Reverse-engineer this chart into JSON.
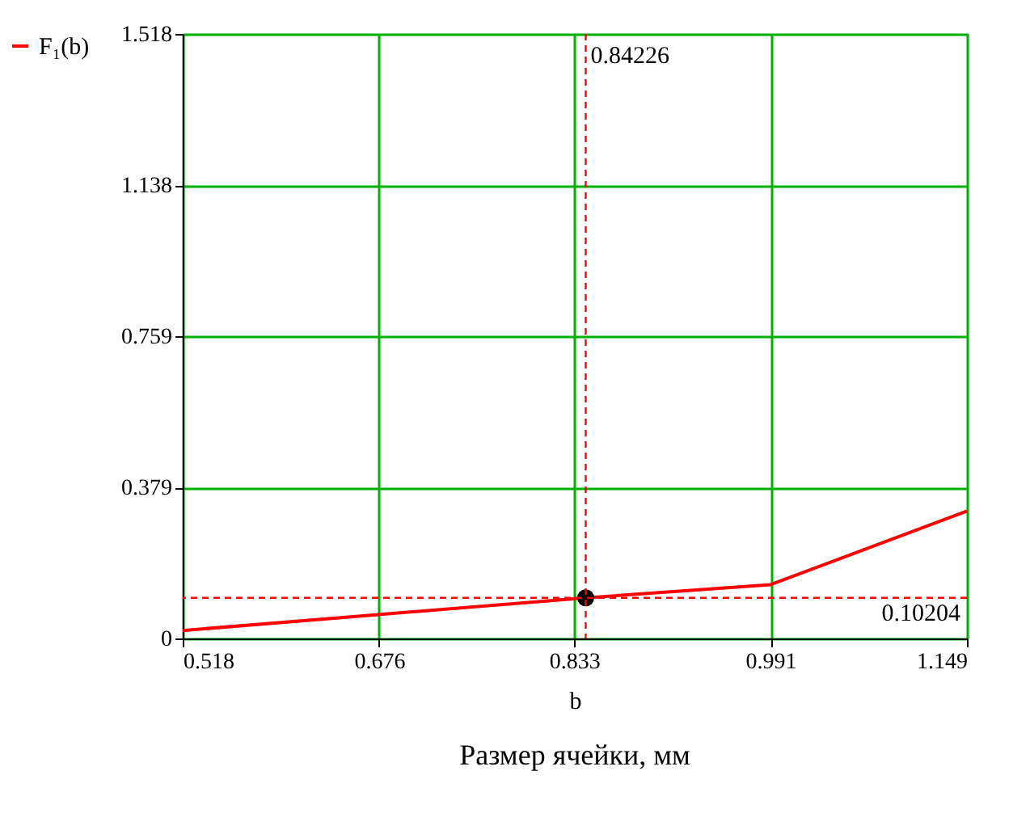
{
  "chart_data": {
    "type": "line",
    "xlabel": "b",
    "annotations": [
      "Размер ячейки, мм"
    ],
    "x": [
      0.518,
      0.84226,
      0.991,
      1.149
    ],
    "series": [
      {
        "name": "F₁(b)",
        "color": "#ff0000",
        "values": [
          0.02,
          0.10204,
          0.135,
          0.32
        ]
      },
      {
        "type": "scatter",
        "color": "#000000",
        "x": [
          0.84226
        ],
        "values": [
          0.10204
        ],
        "marker": "circle"
      }
    ],
    "xlim": [
      0.518,
      1.149
    ],
    "xticks": [
      0.518,
      0.676,
      0.833,
      0.991,
      1.149
    ],
    "ylim": [
      0,
      1.518
    ],
    "yticks": [
      0,
      0.379,
      0.759,
      1.138,
      1.518
    ],
    "ref_lines": [
      {
        "axis": "x",
        "value": 0.84226,
        "label": "0.84226",
        "color": "#ff0000",
        "line_style": "dashed"
      },
      {
        "axis": "y",
        "value": 0.10204,
        "label": "0.10204",
        "color": "#ff0000",
        "line_style": "dashed"
      }
    ],
    "grid": true,
    "legend": "left",
    "line_style": "solid"
  }
}
